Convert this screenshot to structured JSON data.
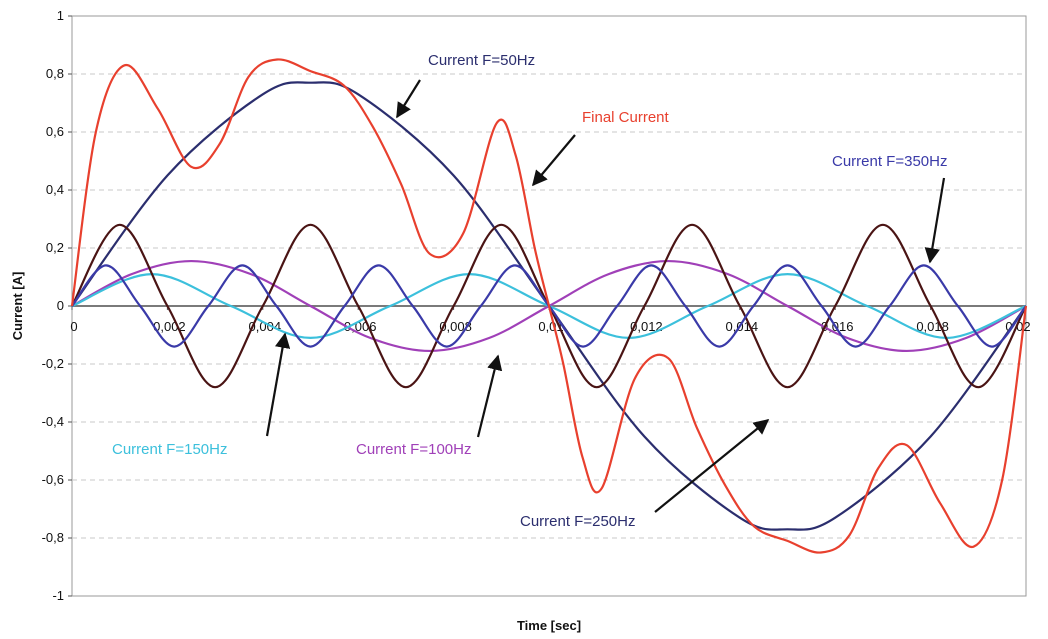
{
  "chart_data": {
    "type": "line",
    "title": "",
    "xlabel": "Time [sec]",
    "ylabel": "Current [A]",
    "xlim": [
      0,
      0.02
    ],
    "ylim": [
      -1,
      1
    ],
    "x_ticks": [
      "0",
      "0,002",
      "0,004",
      "0,006",
      "0,008",
      "0,01",
      "0,012",
      "0,014",
      "0,016",
      "0,018",
      "0,02"
    ],
    "y_ticks": [
      "1",
      "0,8",
      "0,6",
      "0,4",
      "0,2",
      "0",
      "-0,2",
      "-0,4",
      "-0,6",
      "-0,8",
      "-1"
    ],
    "grid": "horizontal dashed",
    "legend": "none",
    "series": [
      {
        "name": "Current F=50Hz",
        "color": "#2b2e6e",
        "x": [
          0,
          0.002,
          0.004,
          0.005,
          0.006,
          0.008,
          0.01,
          0.012,
          0.014,
          0.015,
          0.016,
          0.018,
          0.02
        ],
        "y": [
          0,
          0.45,
          0.73,
          0.77,
          0.73,
          0.45,
          0,
          -0.45,
          -0.73,
          -0.77,
          -0.73,
          -0.45,
          0
        ]
      },
      {
        "name": "Current F=100Hz",
        "color": "#a040b8",
        "x": [
          0,
          0.00125,
          0.0025,
          0.00375,
          0.005,
          0.00625,
          0.0075,
          0.00875,
          0.01,
          0.01125,
          0.0125,
          0.01375,
          0.015,
          0.01625,
          0.0175,
          0.01875,
          0.02
        ],
        "y": [
          0,
          0.11,
          0.155,
          0.11,
          0,
          -0.11,
          -0.155,
          -0.11,
          0,
          0.11,
          0.155,
          0.11,
          0,
          -0.11,
          -0.155,
          -0.11,
          0
        ]
      },
      {
        "name": "Current F=150Hz",
        "color": "#3cc0dc",
        "x": [
          0,
          0.00167,
          0.00333,
          0.005,
          0.00667,
          0.00833,
          0.01,
          0.01167,
          0.01333,
          0.015,
          0.01667,
          0.01833,
          0.02
        ],
        "y": [
          0,
          0.11,
          0,
          -0.11,
          0,
          0.11,
          0,
          -0.11,
          0,
          0.11,
          0,
          -0.11,
          0
        ]
      },
      {
        "name": "Current F=250Hz",
        "color": "#4a1414",
        "x": [
          0,
          0.001,
          0.002,
          0.003,
          0.004,
          0.005,
          0.006,
          0.007,
          0.008,
          0.009,
          0.01,
          0.011,
          0.012,
          0.013,
          0.014,
          0.015,
          0.016,
          0.017,
          0.018,
          0.019,
          0.02
        ],
        "y": [
          0,
          0.28,
          0,
          -0.28,
          0,
          0.28,
          0,
          -0.28,
          0,
          0.28,
          0,
          -0.28,
          0,
          0.28,
          0,
          -0.28,
          0,
          0.28,
          0,
          -0.28,
          0
        ]
      },
      {
        "name": "Current F=350Hz",
        "color": "#3a3aa8",
        "x": [
          0,
          0.000714,
          0.001429,
          0.002143,
          0.002857,
          0.003571,
          0.004286,
          0.005,
          0.005714,
          0.006429,
          0.007143,
          0.007857,
          0.008571,
          0.009286,
          0.01,
          0.010714,
          0.011429,
          0.012143,
          0.012857,
          0.013571,
          0.014286,
          0.015,
          0.015714,
          0.016429,
          0.017143,
          0.017857,
          0.018571,
          0.019286,
          0.02
        ],
        "y": [
          0,
          0.14,
          0,
          -0.14,
          0,
          0.14,
          0,
          -0.14,
          0,
          0.14,
          0,
          -0.14,
          0,
          0.14,
          0,
          -0.14,
          0,
          0.14,
          0,
          -0.14,
          0,
          0.14,
          0,
          -0.14,
          0,
          0.14,
          0,
          -0.14,
          0
        ]
      },
      {
        "name": "Final Current",
        "color": "#e8402e",
        "x": [
          0,
          0.0005,
          0.0011,
          0.0018,
          0.0025,
          0.0031,
          0.0037,
          0.0043,
          0.005,
          0.0057,
          0.0063,
          0.0069,
          0.0075,
          0.0082,
          0.0089,
          0.0093,
          0.0097,
          0.01,
          0.0103,
          0.0107,
          0.0111,
          0.0118,
          0.0125,
          0.0131,
          0.0137,
          0.0143,
          0.015,
          0.0157,
          0.0163,
          0.0169,
          0.0175,
          0.0182,
          0.0189,
          0.0195,
          0.02
        ],
        "y": [
          0,
          0.6,
          0.83,
          0.68,
          0.48,
          0.56,
          0.79,
          0.85,
          0.81,
          0.76,
          0.62,
          0.42,
          0.18,
          0.25,
          0.63,
          0.52,
          0.2,
          0,
          -0.2,
          -0.52,
          -0.63,
          -0.25,
          -0.18,
          -0.42,
          -0.62,
          -0.76,
          -0.81,
          -0.85,
          -0.79,
          -0.56,
          -0.48,
          -0.68,
          -0.83,
          -0.6,
          0
        ]
      }
    ],
    "annotations": [
      {
        "text": "Current F=50Hz",
        "color": "#2b2e6e"
      },
      {
        "text": "Final Current",
        "color": "#e8402e"
      },
      {
        "text": "Current F=350Hz",
        "color": "#3a3aa8"
      },
      {
        "text": "Current F=150Hz",
        "color": "#3cc0dc"
      },
      {
        "text": "Current F=100Hz",
        "color": "#a040b8"
      },
      {
        "text": "Current F=250Hz",
        "color": "#2b2e6e"
      }
    ]
  }
}
